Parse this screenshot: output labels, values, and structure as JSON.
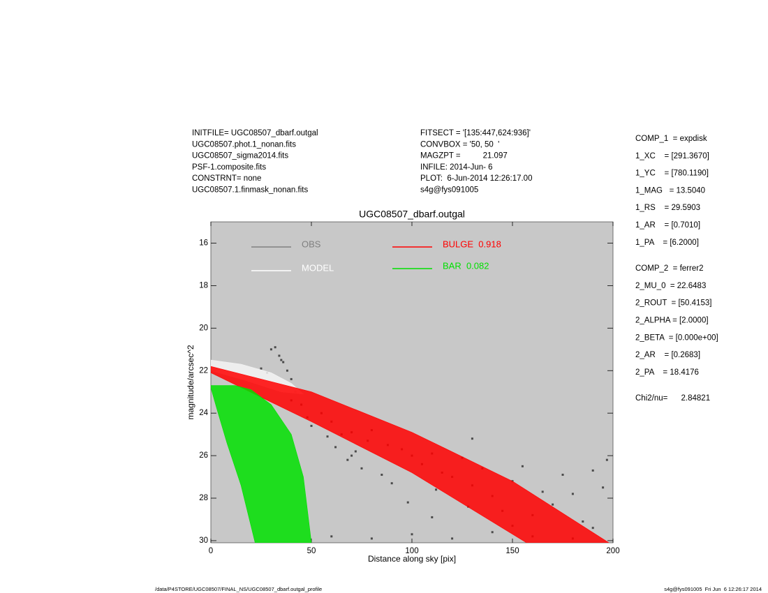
{
  "header_left": [
    "INITFILE= UGC08507_dbarf.outgal",
    "UGC08507.phot.1_nonan.fits",
    "UGC08507_sigma2014.fits",
    "PSF-1.composite.fits",
    "CONSTRNT= none",
    "UGC08507.1.finmask_nonan.fits"
  ],
  "header_mid": [
    "FITSECT = '[135:447,624:936]'",
    "CONVBOX = '50, 50  '",
    "MAGZPT =          21.097",
    "INFILE: 2014-Jun- 6",
    "PLOT:  6-Jun-2014 12:26:17.00",
    "s4g@fys091005"
  ],
  "params": [
    [
      "COMP_1  = expdisk",
      "1_XC    = [291.3670]",
      "1_YC    = [780.1190]",
      "1_MAG   = 13.5040",
      "1_RS    = 29.5903",
      "1_AR    = [0.7010]",
      "1_PA    = [6.2000]"
    ],
    [
      "COMP_2  = ferrer2",
      "2_MU_0  = 22.6483",
      "2_ROUT  = [50.4153]",
      "2_ALPHA = [2.0000]",
      "2_BETA  = [0.000e+00]",
      "2_AR    = [0.2683]",
      "2_PA    = 18.4176"
    ],
    [
      "Chi2/nu=      2.84821"
    ]
  ],
  "footer_left": "/data/P4STORE/UGC08507/FINAL_NS/UGC08507_dbarf.outgal_profile",
  "footer_right": "s4g@fys091005  Fri Jun  6 12:26:17 2014",
  "chart_data": {
    "type": "scatter",
    "title": "UGC08507_dbarf.outgal",
    "x_label": "Distance along sky [pix]",
    "y_label": "magnitude/arcsec^2",
    "xlim": [
      0,
      200
    ],
    "xticks": [
      0,
      50,
      100,
      150,
      200
    ],
    "ylim": [
      30.1,
      15
    ],
    "yticks": [
      16,
      18,
      20,
      22,
      24,
      26,
      28,
      30
    ],
    "y_inverted": true,
    "background": "#c8c8c8",
    "series": [
      {
        "name": "OBS",
        "color": "#4a4a4a",
        "legend_color": "#808080",
        "kind": "points",
        "x": [
          30,
          32,
          34,
          36,
          38,
          40,
          25,
          28,
          35,
          42,
          45,
          48,
          50,
          55,
          58,
          60,
          62,
          65,
          68,
          70,
          72,
          75,
          78,
          80,
          85,
          88,
          90,
          95,
          98,
          100,
          105,
          110,
          112,
          115,
          120,
          125,
          128,
          130,
          135,
          140,
          145,
          150,
          155,
          160,
          165,
          170,
          175,
          180,
          185,
          190,
          195,
          197,
          60,
          80,
          100,
          120,
          140,
          160,
          180,
          40,
          70,
          110,
          150,
          190,
          130
        ],
        "values": [
          21.0,
          20.9,
          21.3,
          21.6,
          22.0,
          22.4,
          21.9,
          22.1,
          21.5,
          23.0,
          23.6,
          24.2,
          24.6,
          24.0,
          25.1,
          24.4,
          25.6,
          25.0,
          26.2,
          24.9,
          25.8,
          26.6,
          25.3,
          24.8,
          26.9,
          25.5,
          27.3,
          25.7,
          28.2,
          26.0,
          26.4,
          25.9,
          27.6,
          26.8,
          27.0,
          26.1,
          28.4,
          27.4,
          26.6,
          27.9,
          28.6,
          27.2,
          26.5,
          28.8,
          27.7,
          28.3,
          26.9,
          27.8,
          29.1,
          26.7,
          27.5,
          26.2,
          29.8,
          29.9,
          29.7,
          29.9,
          29.6,
          29.8,
          29.9,
          23.4,
          26.0,
          28.9,
          29.3,
          29.4,
          25.2
        ]
      },
      {
        "name": "MODEL",
        "color": "#f4f4f4",
        "legend_color": "#ffffff",
        "kind": "polygon",
        "x": [
          0,
          15,
          30,
          40,
          46,
          35,
          15,
          0
        ],
        "values": [
          21.5,
          21.7,
          22.1,
          22.6,
          23.1,
          23.0,
          22.4,
          22.0
        ]
      },
      {
        "name": "BULGE  0.918",
        "color": "#ff0000",
        "legend_color": "#ff0000",
        "kind": "polygon",
        "x": [
          0,
          50,
          100,
          150,
          198,
          157,
          100,
          50,
          0
        ],
        "values": [
          21.8,
          23.0,
          24.9,
          27.2,
          30.1,
          30.1,
          26.8,
          24.4,
          22.1
        ]
      },
      {
        "name": "BAR  0.082",
        "color": "#00e000",
        "legend_color": "#00e000",
        "kind": "polygon",
        "x": [
          0,
          12,
          20,
          30,
          40,
          46,
          50,
          22,
          15,
          8,
          3,
          0
        ],
        "values": [
          22.7,
          22.7,
          22.9,
          23.6,
          25.0,
          27.0,
          30.1,
          30.1,
          27.4,
          25.4,
          23.8,
          22.8
        ]
      }
    ]
  }
}
